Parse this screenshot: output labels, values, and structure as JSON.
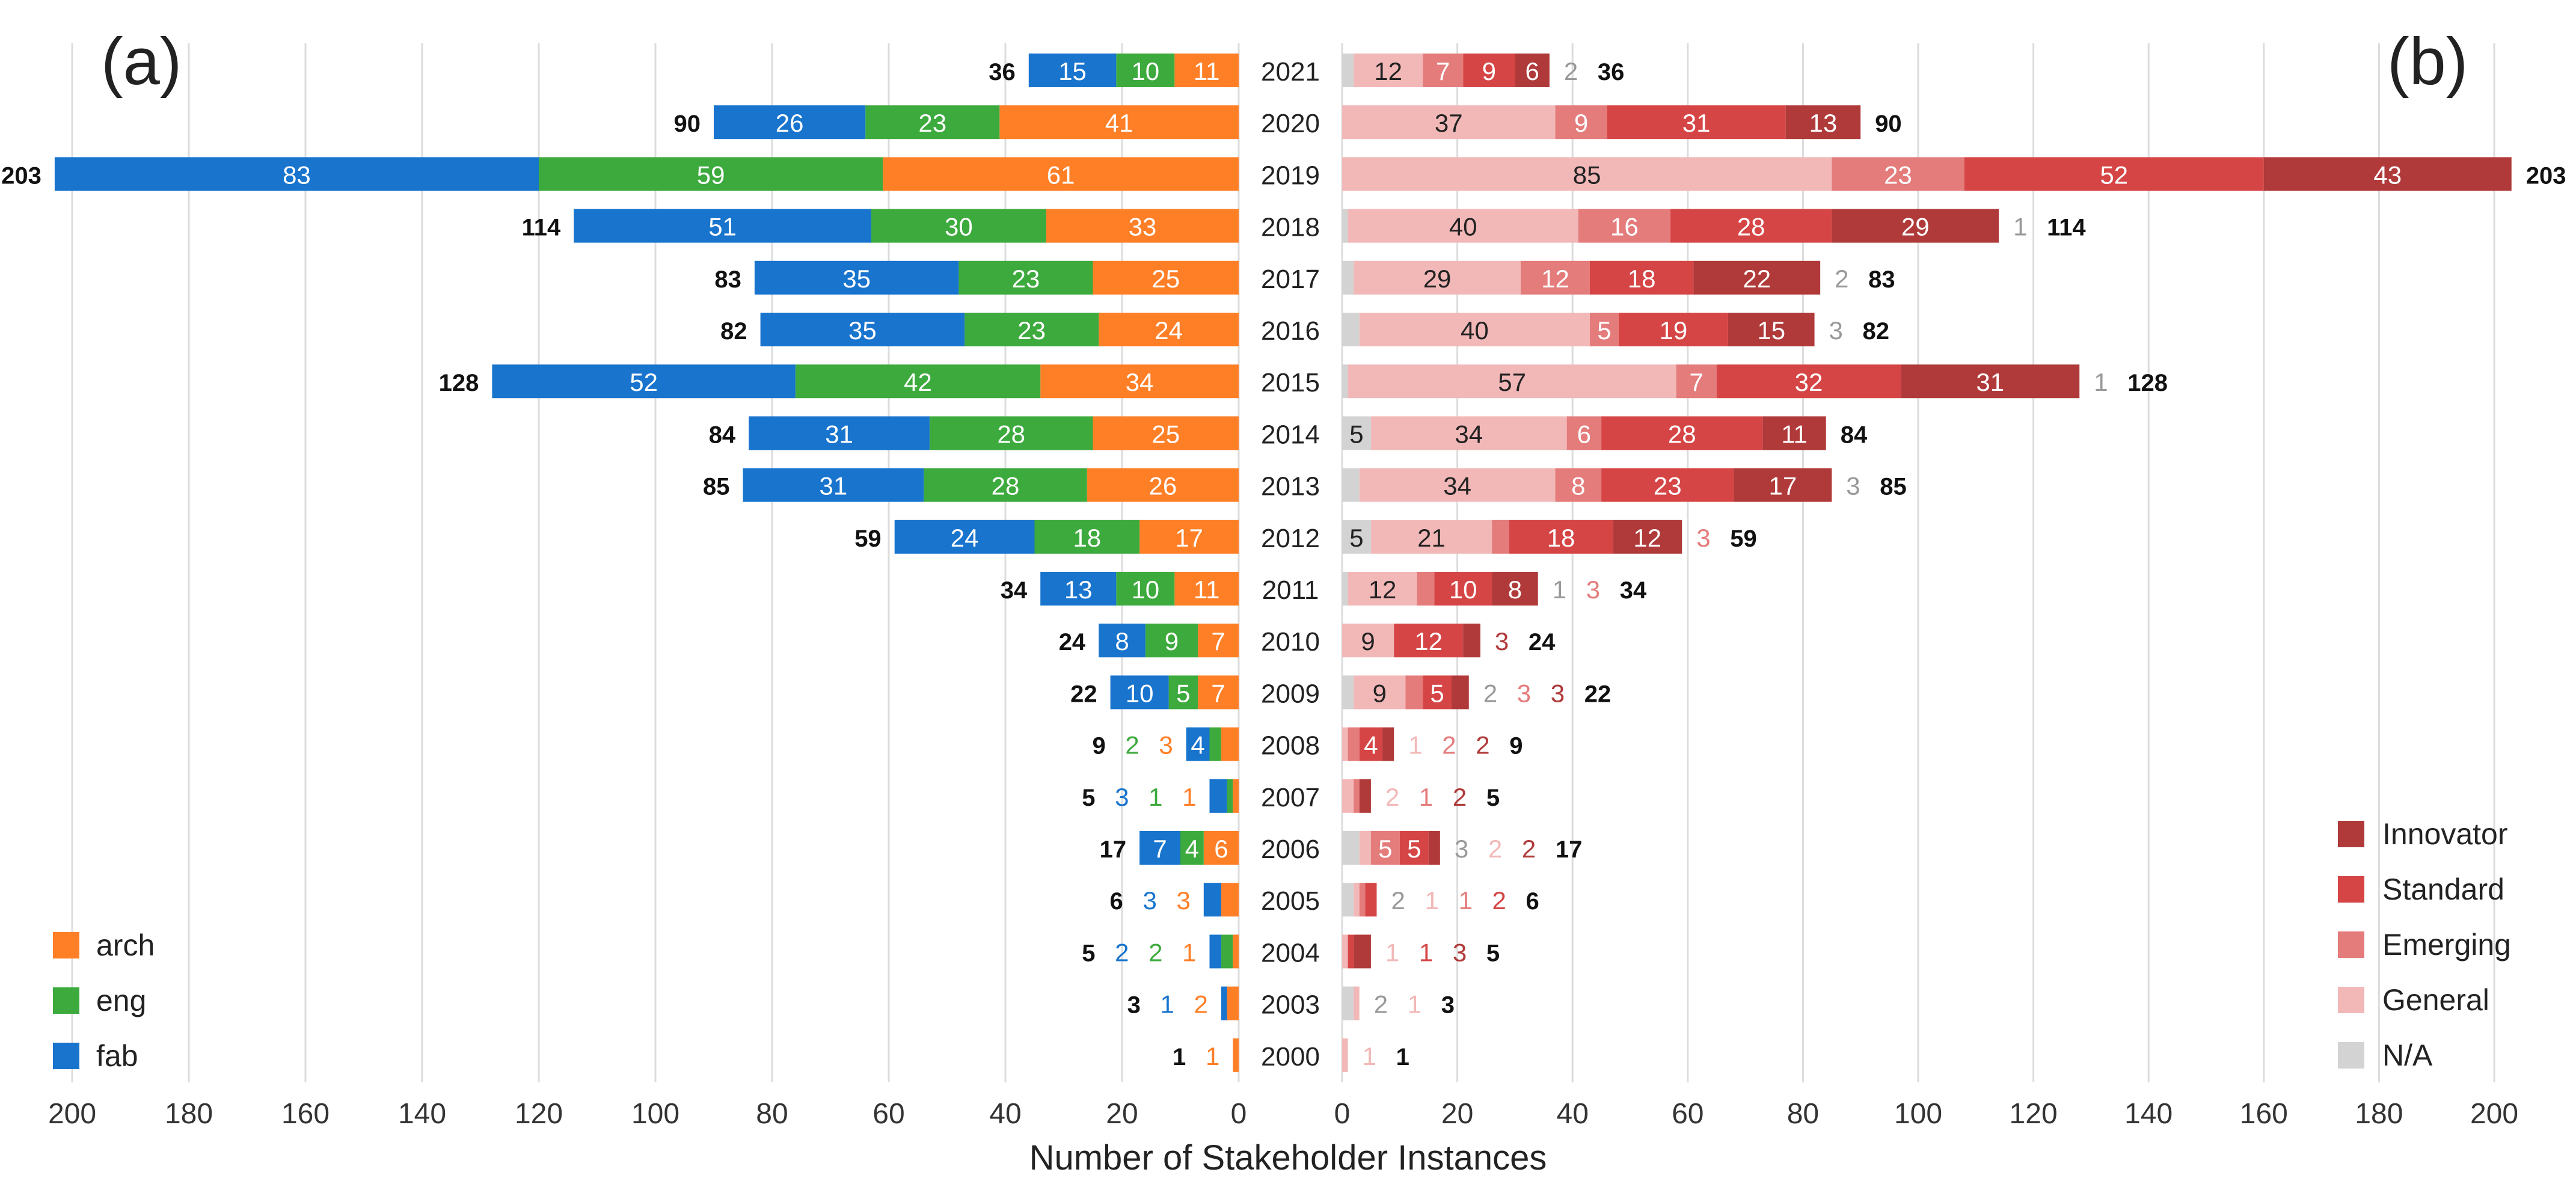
{
  "chart_data": [
    {
      "panel": "(a)",
      "type": "bar",
      "orientation": "horizontal",
      "stacked": true,
      "direction": "leftward",
      "categories": [
        "2021",
        "2020",
        "2019",
        "2018",
        "2017",
        "2016",
        "2015",
        "2014",
        "2013",
        "2012",
        "2011",
        "2010",
        "2009",
        "2008",
        "2007",
        "2006",
        "2005",
        "2004",
        "2003",
        "2000"
      ],
      "series": [
        {
          "name": "arch",
          "color": "#ff7f27",
          "values": [
            11,
            41,
            61,
            33,
            25,
            24,
            34,
            25,
            26,
            17,
            11,
            7,
            7,
            3,
            1,
            6,
            3,
            1,
            2,
            1
          ]
        },
        {
          "name": "eng",
          "color": "#3daa3d",
          "values": [
            10,
            23,
            59,
            30,
            23,
            23,
            42,
            28,
            28,
            18,
            10,
            9,
            5,
            2,
            1,
            4,
            0,
            2,
            0,
            0
          ]
        },
        {
          "name": "fab",
          "color": "#1874cd",
          "values": [
            15,
            26,
            83,
            51,
            35,
            35,
            52,
            31,
            31,
            24,
            13,
            8,
            10,
            4,
            3,
            7,
            3,
            2,
            1,
            0
          ]
        }
      ],
      "totals": [
        36,
        90,
        203,
        114,
        83,
        82,
        128,
        84,
        85,
        59,
        34,
        24,
        22,
        9,
        5,
        17,
        6,
        5,
        3,
        1
      ],
      "xlim": [
        0,
        200
      ],
      "xticks": [
        "200",
        "180",
        "160",
        "140",
        "120",
        "100",
        "80",
        "60",
        "40",
        "20",
        "0"
      ],
      "legend": [
        "arch",
        "eng",
        "fab"
      ],
      "legend_position": "bottom-left"
    },
    {
      "panel": "(b)",
      "type": "bar",
      "orientation": "horizontal",
      "stacked": true,
      "direction": "rightward",
      "categories": [
        "2021",
        "2020",
        "2019",
        "2018",
        "2017",
        "2016",
        "2015",
        "2014",
        "2013",
        "2012",
        "2011",
        "2010",
        "2009",
        "2008",
        "2007",
        "2006",
        "2005",
        "2004",
        "2003",
        "2000"
      ],
      "series": [
        {
          "name": "N/A",
          "color": "#d3d3d3",
          "values": [
            2,
            0,
            0,
            1,
            2,
            3,
            1,
            5,
            3,
            5,
            1,
            0,
            2,
            0,
            0,
            3,
            2,
            0,
            2,
            0
          ]
        },
        {
          "name": "General",
          "color": "#f2b8b8",
          "values": [
            12,
            37,
            85,
            40,
            29,
            40,
            57,
            34,
            34,
            21,
            12,
            9,
            9,
            1,
            2,
            2,
            1,
            1,
            1,
            1
          ]
        },
        {
          "name": "Emerging",
          "color": "#e47c7c",
          "values": [
            7,
            9,
            23,
            16,
            12,
            5,
            7,
            6,
            8,
            3,
            3,
            0,
            3,
            2,
            1,
            5,
            1,
            0,
            0,
            0
          ]
        },
        {
          "name": "Standard",
          "color": "#d64545",
          "values": [
            9,
            31,
            52,
            28,
            18,
            19,
            32,
            28,
            23,
            18,
            10,
            12,
            5,
            4,
            0,
            5,
            2,
            1,
            0,
            0
          ]
        },
        {
          "name": "Innovator",
          "color": "#b03a3a",
          "values": [
            6,
            13,
            43,
            29,
            22,
            15,
            31,
            11,
            17,
            12,
            8,
            3,
            3,
            2,
            2,
            2,
            0,
            3,
            0,
            0
          ]
        }
      ],
      "totals": [
        36,
        90,
        203,
        114,
        83,
        82,
        128,
        84,
        85,
        59,
        34,
        24,
        22,
        9,
        5,
        17,
        6,
        5,
        3,
        1
      ],
      "xlim": [
        0,
        200
      ],
      "xticks": [
        "0",
        "20",
        "40",
        "60",
        "80",
        "100",
        "120",
        "140",
        "160",
        "180",
        "200"
      ],
      "legend": [
        "Innovator",
        "Standard",
        "Emerging",
        "General",
        "N/A"
      ],
      "legend_position": "bottom-right"
    }
  ],
  "panel_labels": {
    "a": "(a)",
    "b": "(b)"
  },
  "xlabel": "Number of Stakeholder Instances"
}
